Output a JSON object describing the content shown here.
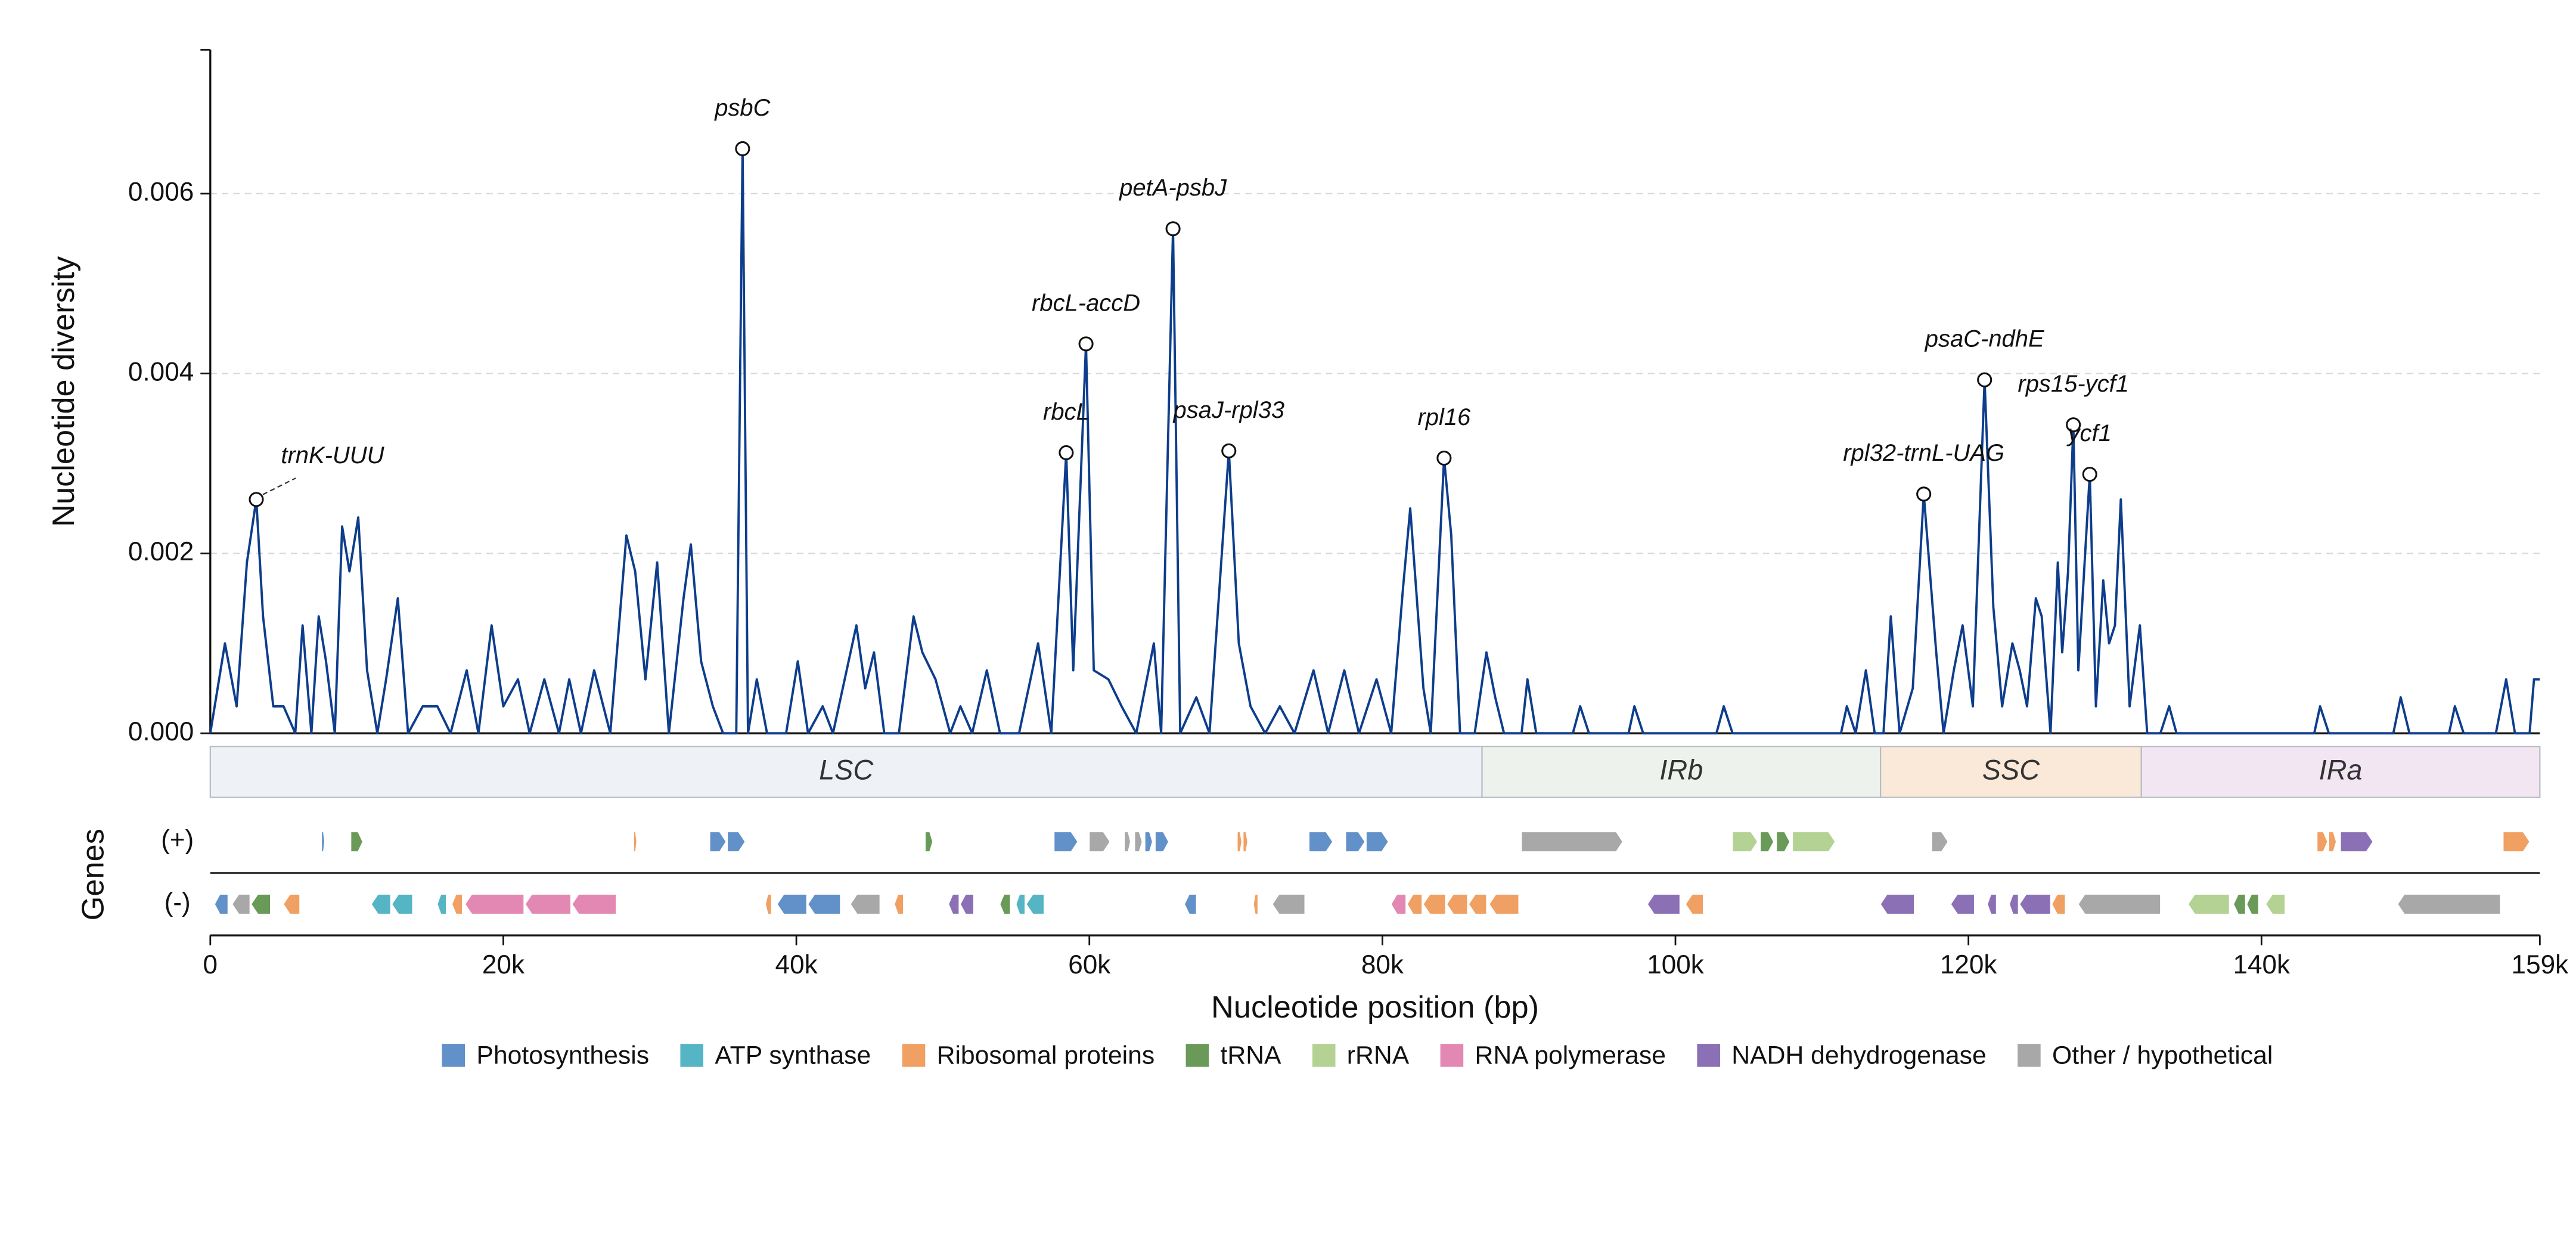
{
  "chart_data": {
    "type": "line",
    "ylabel": "Nucleotide diversity",
    "xlabel": "Nucleotide position (bp)",
    "color": "#0d3d8c",
    "xlim": [
      0,
      159000
    ],
    "ylim": [
      0,
      0.0076
    ],
    "yticks": [
      {
        "value": 0,
        "label": "0.000"
      },
      0.002,
      0.004,
      0.006
    ],
    "xticks": [
      0,
      {
        "value": 20000,
        "label": "20k"
      },
      {
        "value": 40000,
        "label": "40k"
      },
      {
        "value": 60000,
        "label": "60k"
      },
      {
        "value": 80000,
        "label": "80k"
      },
      {
        "value": 100000,
        "label": "100k"
      },
      {
        "value": 120000,
        "label": "120k"
      },
      {
        "value": 140000,
        "label": "140k"
      },
      {
        "value": 159000,
        "label": "159k"
      }
    ],
    "grid": true,
    "x": [
      0,
      1000,
      1800,
      2500,
      3140,
      3600,
      4300,
      5000,
      5800,
      6300,
      6900,
      7400,
      7900,
      8500,
      9000,
      9500,
      10100,
      10700,
      11400,
      12000,
      12800,
      13500,
      14500,
      15500,
      16400,
      17500,
      18300,
      19200,
      20000,
      21000,
      21800,
      22800,
      23800,
      24500,
      25300,
      26200,
      27300,
      28400,
      29000,
      29700,
      30500,
      31300,
      32300,
      32800,
      33500,
      34300,
      35000,
      35900,
      36330,
      36700,
      37300,
      38000,
      39300,
      40100,
      40800,
      41800,
      42500,
      44100,
      44700,
      45300,
      46000,
      47000,
      48000,
      48600,
      49500,
      50500,
      51200,
      52000,
      53000,
      53900,
      55200,
      56500,
      57400,
      58420,
      58900,
      59770,
      60300,
      61300,
      62200,
      63200,
      64400,
      64900,
      65710,
      66200,
      67300,
      68200,
      69520,
      70200,
      71000,
      72000,
      73000,
      74000,
      75300,
      76300,
      77400,
      78400,
      79600,
      80600,
      81400,
      81900,
      82800,
      83300,
      84210,
      84700,
      85300,
      86300,
      87100,
      87700,
      88300,
      89500,
      89900,
      90500,
      93000,
      93500,
      94100,
      96800,
      97200,
      97800,
      102800,
      103300,
      103900,
      111300,
      111700,
      112300,
      113000,
      113600,
      114200,
      114700,
      115300,
      116200,
      116950,
      117800,
      118300,
      119000,
      119600,
      120300,
      121100,
      121700,
      122300,
      123000,
      123500,
      124000,
      124600,
      125000,
      125600,
      126100,
      126400,
      126800,
      127160,
      127500,
      128280,
      128700,
      129200,
      129600,
      130000,
      130400,
      131000,
      131700,
      132200,
      133100,
      133700,
      134200,
      143600,
      144000,
      144600,
      149000,
      149500,
      150100,
      152800,
      153200,
      153800,
      156000,
      156700,
      157300,
      158300,
      158600,
      159000
    ],
    "values": [
      0,
      0.001,
      0.0003,
      0.0019,
      0.0026,
      0.0013,
      0.0003,
      0.0003,
      0,
      0.0012,
      0,
      0.0013,
      0.0008,
      0,
      0.0023,
      0.0018,
      0.0024,
      0.0007,
      0,
      0.0006,
      0.0015,
      0,
      0.0003,
      0.0003,
      0,
      0.0007,
      0,
      0.0012,
      0.0003,
      0.0006,
      0,
      0.0006,
      0,
      0.0006,
      0,
      0.0007,
      0,
      0.0022,
      0.0018,
      0.0006,
      0.0019,
      0,
      0.0015,
      0.0021,
      0.0008,
      0.0003,
      0,
      0,
      0.0065,
      0,
      0.0006,
      0,
      0,
      0.0008,
      0,
      0.0003,
      0,
      0.0012,
      0.0005,
      0.0009,
      0,
      0,
      0.0013,
      0.0009,
      0.0006,
      0,
      0.0003,
      0,
      0.0007,
      0,
      0,
      0.001,
      0,
      0.00312,
      0.0007,
      0.00433,
      0.0007,
      0.0006,
      0.0003,
      0,
      0.001,
      0,
      0.00561,
      0,
      0.0004,
      0,
      0.00314,
      0.001,
      0.0003,
      0,
      0.0003,
      0,
      0.0007,
      0,
      0.0007,
      0,
      0.0006,
      0,
      0.0016,
      0.0025,
      0.0005,
      0,
      0.00306,
      0.0022,
      0,
      0,
      0.0009,
      0.0004,
      0,
      0,
      0.0006,
      0,
      0,
      0.0003,
      0,
      0,
      0.0003,
      0,
      0,
      0.0003,
      0,
      0,
      0.0003,
      0,
      0.0007,
      0,
      0,
      0.0013,
      0,
      0.0005,
      0.00266,
      0.0009,
      0,
      0.0007,
      0.0012,
      0.0003,
      0.00393,
      0.0014,
      0.0003,
      0.001,
      0.0007,
      0.0003,
      0.0015,
      0.0013,
      0,
      0.0019,
      0.0009,
      0.0018,
      0.00343,
      0.0007,
      0.00288,
      0.0003,
      0.0017,
      0.001,
      0.0012,
      0.0026,
      0.0003,
      0.0012,
      0,
      0,
      0.0003,
      0,
      0,
      0.0003,
      0,
      0,
      0.0004,
      0,
      0,
      0.0003,
      0,
      0,
      0.0006,
      0,
      0,
      0.0006,
      0.0006
    ],
    "annotations": [
      {
        "text": "trnK-UUU",
        "x": 3140,
        "y": 0.0026
      },
      {
        "text": "psbC",
        "x": 36330,
        "y": 0.0065
      },
      {
        "text": "rbcL",
        "x": 58420,
        "y": 0.00312
      },
      {
        "text": "rbcL-accD",
        "x": 59770,
        "y": 0.00433
      },
      {
        "text": "petA-psbJ",
        "x": 65710,
        "y": 0.00561
      },
      {
        "text": "psaJ-rpl33",
        "x": 69520,
        "y": 0.00314
      },
      {
        "text": "rpl16",
        "x": 84210,
        "y": 0.00306
      },
      {
        "text": "rpl32-trnL-UAG",
        "x": 116950,
        "y": 0.00266
      },
      {
        "text": "psaC-ndhE",
        "x": 121100,
        "y": 0.00393
      },
      {
        "text": "rps15-ycf1",
        "x": 127160,
        "y": 0.00343
      },
      {
        "text": "ycf1",
        "x": 128280,
        "y": 0.00288
      }
    ],
    "regions": [
      {
        "name": "LSC",
        "start": 0,
        "end": 86800,
        "color": "#eef2f6"
      },
      {
        "name": "IRb",
        "start": 86800,
        "end": 114000,
        "color": "#edf3ec"
      },
      {
        "name": "SSC",
        "start": 114000,
        "end": 131800,
        "color": "#fae8d9"
      },
      {
        "name": "IRa",
        "start": 131800,
        "end": 159000,
        "color": "#f1e6f1"
      }
    ],
    "gene_label": "Genes",
    "tracks": [
      "(+)",
      "(-)"
    ],
    "categories": [
      {
        "name": "Photosynthesis",
        "color": "#6191c8"
      },
      {
        "name": "ATP synthase",
        "color": "#55b5c4"
      },
      {
        "name": "Ribosomal proteins",
        "color": "#f0a062"
      },
      {
        "name": "tRNA",
        "color": "#6a9a58"
      },
      {
        "name": "rRNA",
        "color": "#b3d293"
      },
      {
        "name": "RNA polymerase",
        "color": "#e388b3"
      },
      {
        "name": "NADH dehydrogenase",
        "color": "#8b70b6"
      },
      {
        "name": "Other / hypothetical",
        "color": "#a8a8a8"
      }
    ],
    "genes": [
      {
        "track": 0,
        "start": 7600,
        "end": 7800,
        "category": 0
      },
      {
        "track": 0,
        "start": 9600,
        "end": 10400,
        "category": 3
      },
      {
        "track": 0,
        "start": 28900,
        "end": 29100,
        "category": 2
      },
      {
        "track": 0,
        "start": 34100,
        "end": 35200,
        "category": 0
      },
      {
        "track": 0,
        "start": 35300,
        "end": 36500,
        "category": 0
      },
      {
        "track": 0,
        "start": 48800,
        "end": 49300,
        "category": 3
      },
      {
        "track": 0,
        "start": 57600,
        "end": 59200,
        "category": 0
      },
      {
        "track": 0,
        "start": 60000,
        "end": 61400,
        "category": 7
      },
      {
        "track": 0,
        "start": 62400,
        "end": 62800,
        "category": 7
      },
      {
        "track": 0,
        "start": 63100,
        "end": 63600,
        "category": 7
      },
      {
        "track": 0,
        "start": 63800,
        "end": 64300,
        "category": 0
      },
      {
        "track": 0,
        "start": 64500,
        "end": 65400,
        "category": 0
      },
      {
        "track": 0,
        "start": 70100,
        "end": 70400,
        "category": 2
      },
      {
        "track": 0,
        "start": 70500,
        "end": 70800,
        "category": 2
      },
      {
        "track": 0,
        "start": 75000,
        "end": 76600,
        "category": 0
      },
      {
        "track": 0,
        "start": 77500,
        "end": 78800,
        "category": 0
      },
      {
        "track": 0,
        "start": 78900,
        "end": 80400,
        "category": 0
      },
      {
        "track": 0,
        "start": 89500,
        "end": 96400,
        "category": 7
      },
      {
        "track": 0,
        "start": 103900,
        "end": 105600,
        "category": 4
      },
      {
        "track": 0,
        "start": 105800,
        "end": 106700,
        "category": 3
      },
      {
        "track": 0,
        "start": 106900,
        "end": 107800,
        "category": 3
      },
      {
        "track": 0,
        "start": 108000,
        "end": 110900,
        "category": 4
      },
      {
        "track": 0,
        "start": 117500,
        "end": 118600,
        "category": 7
      },
      {
        "track": 0,
        "start": 143800,
        "end": 144500,
        "category": 2
      },
      {
        "track": 0,
        "start": 144600,
        "end": 145100,
        "category": 2
      },
      {
        "track": 0,
        "start": 145400,
        "end": 147600,
        "category": 6
      },
      {
        "track": 0,
        "start": 156500,
        "end": 158300,
        "category": 2
      },
      {
        "track": 1,
        "start": 300,
        "end": 1200,
        "category": 0
      },
      {
        "track": 1,
        "start": 1500,
        "end": 2700,
        "category": 7
      },
      {
        "track": 1,
        "start": 2800,
        "end": 4100,
        "category": 3
      },
      {
        "track": 1,
        "start": 5000,
        "end": 6100,
        "category": 2
      },
      {
        "track": 1,
        "start": 11000,
        "end": 12300,
        "category": 1
      },
      {
        "track": 1,
        "start": 12400,
        "end": 13800,
        "category": 1
      },
      {
        "track": 1,
        "start": 15500,
        "end": 16100,
        "category": 1
      },
      {
        "track": 1,
        "start": 16500,
        "end": 17200,
        "category": 2
      },
      {
        "track": 1,
        "start": 17400,
        "end": 21400,
        "category": 5
      },
      {
        "track": 1,
        "start": 21500,
        "end": 24600,
        "category": 5
      },
      {
        "track": 1,
        "start": 24700,
        "end": 27700,
        "category": 5
      },
      {
        "track": 1,
        "start": 37900,
        "end": 38300,
        "category": 2
      },
      {
        "track": 1,
        "start": 38700,
        "end": 40700,
        "category": 0
      },
      {
        "track": 1,
        "start": 40800,
        "end": 43000,
        "category": 0
      },
      {
        "track": 1,
        "start": 43700,
        "end": 45700,
        "category": 7
      },
      {
        "track": 1,
        "start": 46700,
        "end": 47300,
        "category": 2
      },
      {
        "track": 1,
        "start": 50400,
        "end": 51100,
        "category": 6
      },
      {
        "track": 1,
        "start": 51200,
        "end": 52100,
        "category": 6
      },
      {
        "track": 1,
        "start": 53900,
        "end": 54600,
        "category": 3
      },
      {
        "track": 1,
        "start": 55000,
        "end": 55600,
        "category": 1
      },
      {
        "track": 1,
        "start": 55700,
        "end": 56900,
        "category": 1
      },
      {
        "track": 1,
        "start": 66500,
        "end": 67300,
        "category": 0
      },
      {
        "track": 1,
        "start": 71200,
        "end": 71500,
        "category": 2
      },
      {
        "track": 1,
        "start": 72500,
        "end": 74700,
        "category": 7
      },
      {
        "track": 1,
        "start": 80600,
        "end": 81600,
        "category": 5
      },
      {
        "track": 1,
        "start": 81700,
        "end": 82700,
        "category": 2
      },
      {
        "track": 1,
        "start": 82800,
        "end": 84300,
        "category": 2
      },
      {
        "track": 1,
        "start": 84400,
        "end": 85800,
        "category": 2
      },
      {
        "track": 1,
        "start": 85900,
        "end": 87100,
        "category": 2
      },
      {
        "track": 1,
        "start": 87300,
        "end": 89300,
        "category": 2
      },
      {
        "track": 1,
        "start": 98100,
        "end": 100300,
        "category": 6
      },
      {
        "track": 1,
        "start": 100700,
        "end": 101900,
        "category": 2
      },
      {
        "track": 1,
        "start": 114000,
        "end": 116300,
        "category": 6
      },
      {
        "track": 1,
        "start": 118800,
        "end": 120400,
        "category": 6
      },
      {
        "track": 1,
        "start": 121300,
        "end": 121900,
        "category": 6
      },
      {
        "track": 1,
        "start": 122800,
        "end": 123400,
        "category": 6
      },
      {
        "track": 1,
        "start": 123500,
        "end": 125600,
        "category": 6
      },
      {
        "track": 1,
        "start": 125700,
        "end": 126600,
        "category": 2
      },
      {
        "track": 1,
        "start": 127500,
        "end": 133100,
        "category": 7
      },
      {
        "track": 1,
        "start": 135000,
        "end": 137800,
        "category": 4
      },
      {
        "track": 1,
        "start": 138100,
        "end": 138900,
        "category": 3
      },
      {
        "track": 1,
        "start": 139000,
        "end": 139800,
        "category": 3
      },
      {
        "track": 1,
        "start": 140300,
        "end": 141600,
        "category": 4
      },
      {
        "track": 1,
        "start": 149300,
        "end": 156300,
        "category": 7
      }
    ]
  }
}
